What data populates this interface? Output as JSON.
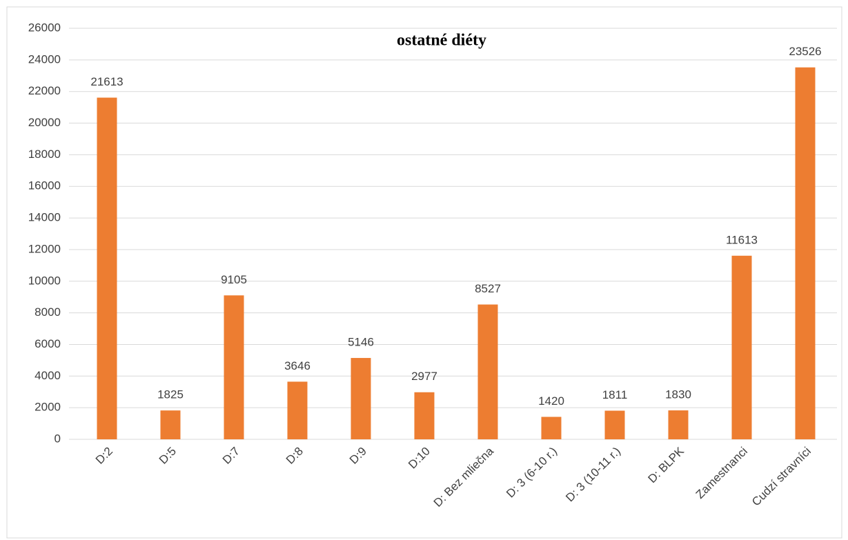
{
  "chart_data": {
    "type": "bar",
    "title": "ostatné diéty",
    "categories": [
      "D:2",
      "D:5",
      "D:7",
      "D:8",
      "D:9",
      "D:10",
      "D: Bez mliečna",
      "D: 3 (6-10 r.)",
      "D: 3 (10-11 r.)",
      "D: BLPK",
      "Zamestnanci",
      "Cudzí stravníci"
    ],
    "values": [
      21613,
      1825,
      9105,
      3646,
      5146,
      2977,
      8527,
      1420,
      1811,
      1830,
      11613,
      23526
    ],
    "color": "#ed7d31",
    "ylim": [
      0,
      26000
    ],
    "yticks": [
      0,
      2000,
      4000,
      6000,
      8000,
      10000,
      12000,
      14000,
      16000,
      18000,
      20000,
      22000,
      24000,
      26000
    ],
    "grid": true
  }
}
